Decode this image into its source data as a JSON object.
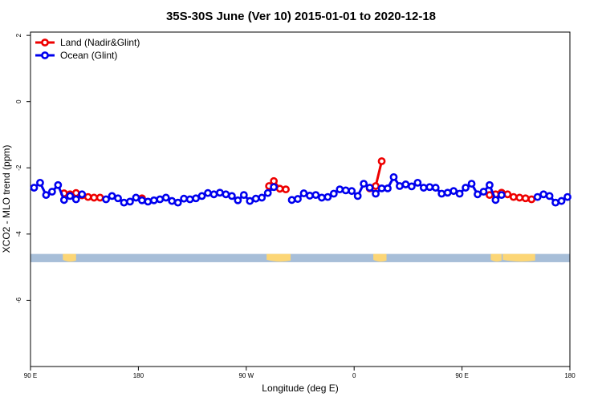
{
  "chart_data": {
    "type": "line",
    "title": "35S-30S June (Ver 10)   2015-01-01 to 2020-12-18",
    "xlabel": "Longitude (deg E)",
    "ylabel": "XCO2 - MLO trend (ppm)",
    "xlim": [
      90,
      540
    ],
    "ylim": [
      -8,
      2.1
    ],
    "x_ticks": [
      {
        "value": 90,
        "label": "90 E"
      },
      {
        "value": 180,
        "label": "180"
      },
      {
        "value": 270,
        "label": "90 W"
      },
      {
        "value": 360,
        "label": "0"
      },
      {
        "value": 450,
        "label": "90 E"
      },
      {
        "value": 540,
        "label": "180"
      }
    ],
    "y_ticks": [
      {
        "value": 2,
        "label": "2"
      },
      {
        "value": 0,
        "label": "0"
      },
      {
        "value": -2,
        "label": "-2"
      },
      {
        "value": -4,
        "label": "-4"
      },
      {
        "value": -6,
        "label": "-6"
      }
    ],
    "legend_position": "top-left",
    "land_strip": {
      "ymin": -4.85,
      "ymax": -4.6,
      "ocean_color": "#a7bed8",
      "land_color": "#fcd676"
    },
    "land_ranges": [
      [
        117,
        128
      ],
      [
        287,
        307
      ],
      [
        376,
        387
      ],
      [
        474,
        483
      ],
      [
        484,
        511
      ]
    ],
    "series": [
      {
        "name": "Land (Nadir&Glint)",
        "color": "#ee0000",
        "x": [
          118,
          123,
          128,
          133,
          138,
          143,
          148,
          183,
          289,
          293,
          298,
          303,
          373,
          378,
          383,
          473,
          478,
          483,
          488,
          493,
          498,
          503,
          508
        ],
        "y": [
          -2.77,
          -2.8,
          -2.76,
          -2.83,
          -2.88,
          -2.9,
          -2.9,
          -2.92,
          -2.55,
          -2.4,
          -2.63,
          -2.65,
          -2.62,
          -2.55,
          -1.8,
          -2.82,
          -2.8,
          -2.75,
          -2.8,
          -2.88,
          -2.9,
          -2.92,
          -2.95
        ]
      },
      {
        "name": "Ocean (Glint)",
        "color": "#0000ee",
        "x": [
          93,
          98,
          103,
          108,
          113,
          118,
          123,
          128,
          133,
          153,
          158,
          163,
          168,
          173,
          178,
          183,
          188,
          193,
          198,
          203,
          208,
          213,
          218,
          223,
          228,
          233,
          238,
          243,
          248,
          253,
          258,
          263,
          268,
          273,
          278,
          283,
          288,
          293,
          308,
          313,
          318,
          323,
          328,
          333,
          338,
          343,
          348,
          353,
          358,
          363,
          368,
          373,
          378,
          383,
          388,
          393,
          398,
          403,
          408,
          413,
          418,
          423,
          428,
          433,
          438,
          443,
          448,
          453,
          458,
          463,
          468,
          473,
          478,
          483,
          513,
          518,
          523,
          528,
          533,
          538
        ],
        "y": [
          -2.6,
          -2.45,
          -2.82,
          -2.72,
          -2.52,
          -2.97,
          -2.85,
          -2.95,
          -2.8,
          -2.95,
          -2.85,
          -2.92,
          -3.05,
          -3.02,
          -2.9,
          -2.98,
          -3.02,
          -2.98,
          -2.95,
          -2.9,
          -3.0,
          -3.05,
          -2.93,
          -2.95,
          -2.92,
          -2.85,
          -2.76,
          -2.8,
          -2.75,
          -2.8,
          -2.85,
          -2.98,
          -2.82,
          -3.0,
          -2.93,
          -2.9,
          -2.76,
          -2.58,
          -2.97,
          -2.94,
          -2.77,
          -2.84,
          -2.82,
          -2.9,
          -2.88,
          -2.78,
          -2.65,
          -2.68,
          -2.7,
          -2.85,
          -2.48,
          -2.6,
          -2.78,
          -2.62,
          -2.62,
          -2.28,
          -2.55,
          -2.5,
          -2.56,
          -2.45,
          -2.6,
          -2.58,
          -2.6,
          -2.78,
          -2.75,
          -2.7,
          -2.78,
          -2.6,
          -2.48,
          -2.8,
          -2.72,
          -2.52,
          -2.97,
          -2.82,
          -2.88,
          -2.8,
          -2.85,
          -3.05,
          -3.0,
          -2.88
        ]
      }
    ]
  }
}
